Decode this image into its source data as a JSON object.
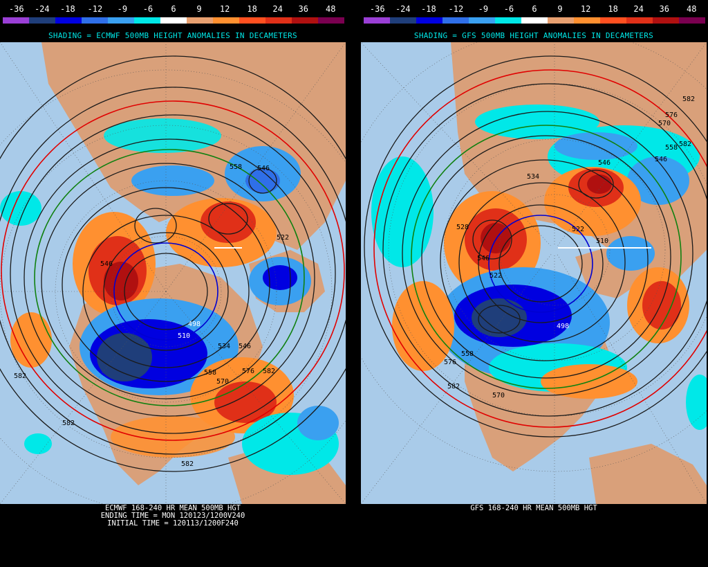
{
  "scale": {
    "ticks": [
      "-36",
      "-24",
      "-18",
      "-12",
      "-9",
      "-6",
      "6",
      "9",
      "12",
      "18",
      "24",
      "36",
      "48"
    ],
    "colors": [
      "#9a3fd6",
      "#1f3e7a",
      "#0000e0",
      "#2f6fe8",
      "#3aa0f0",
      "#00e8e8",
      "#ffffff",
      "#e8a070",
      "#ff9030",
      "#ff5020",
      "#e03018",
      "#b01010",
      "#7a0050"
    ]
  },
  "left": {
    "shading_title": "SHADING = ECMWF 500MB HEIGHT ANOMALIES IN DECAMETERS",
    "caption_lines": [
      "ECMWF 168-240 HR MEAN 500MB HGT",
      "ENDING TIME = MON 120123/1200V240",
      "INITIAL TIME = 120113/1200F240"
    ],
    "contour_labels": [
      "546",
      "558",
      "582",
      "582",
      "582",
      "546",
      "498",
      "510",
      "534",
      "546",
      "558",
      "570",
      "576",
      "582",
      "522"
    ]
  },
  "right": {
    "shading_title": "SHADING = GFS 500MB HEIGHT ANOMALIES IN DECAMETERS",
    "caption_lines": [
      "GFS 168-240 HR MEAN 500MB HGT"
    ],
    "contour_labels": [
      "582",
      "576",
      "570",
      "558",
      "546",
      "546",
      "534",
      "522",
      "510",
      "498",
      "522",
      "528",
      "546",
      "558",
      "570",
      "576",
      "582",
      "582"
    ]
  },
  "colors": {
    "ocean": "#a9cbe9",
    "land": "#d9a07a",
    "contour": "#1a1a1a",
    "contour_blue": "#0000d0",
    "contour_green": "#108010",
    "contour_red": "#e00000"
  }
}
